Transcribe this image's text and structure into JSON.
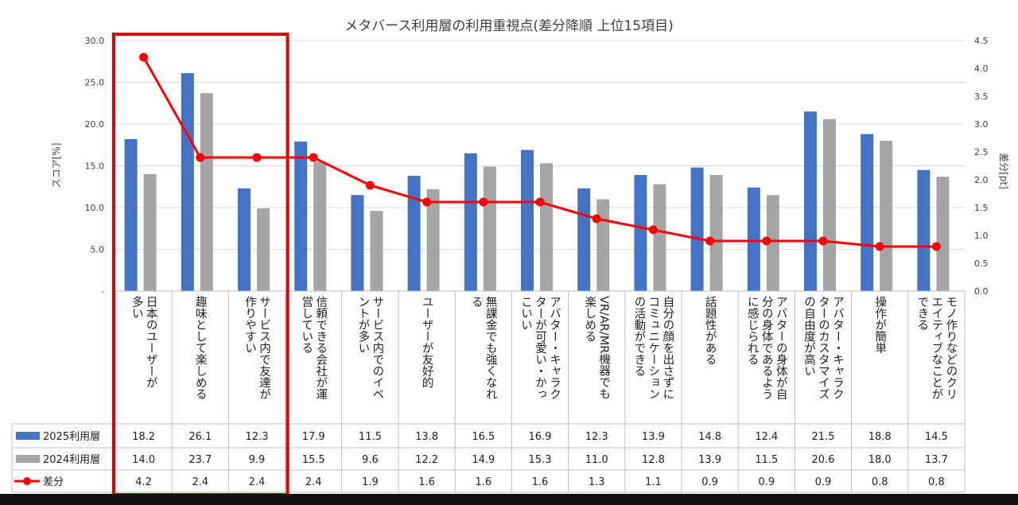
{
  "chart_data": {
    "type": "bar",
    "title": "メタバース利用層の利用重視点(差分降順 上位15項目)",
    "ylabel": "スコア[%]",
    "y2label": "差分[pt]",
    "ylim": [
      0,
      30
    ],
    "y2lim": [
      0,
      4.5
    ],
    "yticks": [
      "-",
      "5.0",
      "10.0",
      "15.0",
      "20.0",
      "25.0",
      "30.0"
    ],
    "y2ticks": [
      "0.0",
      "0.5",
      "1.0",
      "1.5",
      "2.0",
      "2.5",
      "3.0",
      "3.5",
      "4.0",
      "4.5"
    ],
    "categories": [
      [
        "日本のユーザーが",
        "多い"
      ],
      [
        "趣味として楽しめる"
      ],
      [
        "サービス内で友達が",
        "作りやすい"
      ],
      [
        "信頼できる会社が運",
        "営している"
      ],
      [
        "サービス内でのイベ",
        "ントが多い"
      ],
      [
        "ユーザーが友好的"
      ],
      [
        "無課金でも強くなれ",
        "る"
      ],
      [
        "アバター・キャラク",
        "ターが可愛い・かっ",
        "こいい"
      ],
      [
        "VR/AR/MR機器でも",
        "楽しめる"
      ],
      [
        "自分の顔を出さずに",
        "コミュニケーション",
        "の活動ができる"
      ],
      [
        "話題性がある"
      ],
      [
        "アバターの身体が自",
        "分の身体であるよう",
        "に感じられる"
      ],
      [
        "アバター・キャラク",
        "ターのカスタマイズ",
        "の自由度が高い"
      ],
      [
        "操作が簡単"
      ],
      [
        "モノ作りなどのクリ",
        "エイティブなことが",
        "できる"
      ]
    ],
    "series": [
      {
        "name": "2025利用層",
        "type": "bar",
        "axis": "left",
        "color": "#4472C4",
        "values": [
          18.2,
          26.1,
          12.3,
          17.9,
          11.5,
          13.8,
          16.5,
          16.9,
          12.3,
          13.9,
          14.8,
          12.4,
          21.5,
          18.8,
          14.5
        ],
        "labels": [
          "18.2",
          "26.1",
          "12.3",
          "17.9",
          "11.5",
          "13.8",
          "16.5",
          "16.9",
          "12.3",
          "13.9",
          "14.8",
          "12.4",
          "21.5",
          "18.8",
          "14.5"
        ]
      },
      {
        "name": "2024利用層",
        "type": "bar",
        "axis": "left",
        "color": "#A5A5A5",
        "values": [
          14.0,
          23.7,
          9.9,
          15.5,
          9.6,
          12.2,
          14.9,
          15.3,
          11.0,
          12.8,
          13.9,
          11.5,
          20.6,
          18.0,
          13.7
        ],
        "labels": [
          "14.0",
          "23.7",
          "9.9",
          "15.5",
          "9.6",
          "12.2",
          "14.9",
          "15.3",
          "11.0",
          "12.8",
          "13.9",
          "11.5",
          "20.6",
          "18.0",
          "13.7"
        ]
      },
      {
        "name": "差分",
        "type": "line",
        "axis": "right",
        "color": "#FF0000",
        "values": [
          4.2,
          2.4,
          2.4,
          2.4,
          1.9,
          1.6,
          1.6,
          1.6,
          1.3,
          1.1,
          0.9,
          0.9,
          0.9,
          0.8,
          0.8
        ],
        "labels": [
          "4.2",
          "2.4",
          "2.4",
          "2.4",
          "1.9",
          "1.6",
          "1.6",
          "1.6",
          "1.3",
          "1.1",
          "0.9",
          "0.9",
          "0.9",
          "0.8",
          "0.8"
        ]
      }
    ],
    "highlight": {
      "from_index": 0,
      "to_index": 2,
      "color": "#E00000"
    }
  }
}
